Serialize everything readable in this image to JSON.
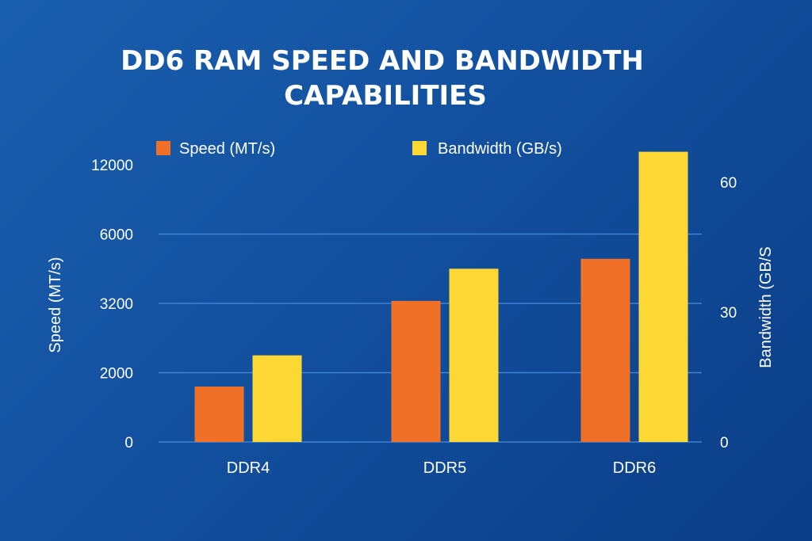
{
  "chart_data": {
    "type": "bar",
    "title_lines": [
      "DD6 RAM SPEED AND BANDWIDTH",
      "CAPABILITIES"
    ],
    "categories": [
      "DDR4",
      "DDR5",
      "DDR6"
    ],
    "series": [
      {
        "name": "Speed (MT/s)",
        "axis": "left",
        "color": "#f07028",
        "values": [
          1600,
          3300,
          5000
        ]
      },
      {
        "name": "Bandwidth (GB/s)",
        "axis": "right",
        "color": "#fdd835",
        "values": [
          20,
          40,
          67
        ]
      }
    ],
    "left_axis": {
      "label": "Speed (MT/s)",
      "ticks": [
        "0",
        "2000",
        "3200",
        "6000",
        "12000"
      ],
      "scale": "categorical-spacing"
    },
    "right_axis": {
      "label": "Bandwidth (GB/S",
      "ticks": [
        "0",
        "30",
        "60"
      ],
      "ylim": [
        0,
        60
      ]
    },
    "legend_placement": "top",
    "grid": true
  }
}
